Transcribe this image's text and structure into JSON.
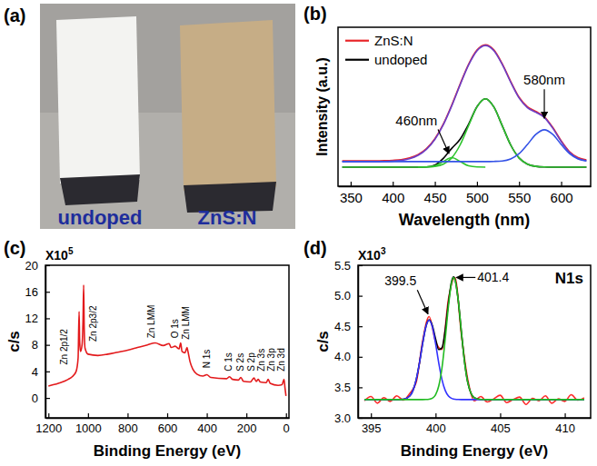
{
  "photo": {
    "panel_label": "(a)",
    "labels": [
      "undoped",
      "ZnS:N"
    ]
  },
  "chart_data": [
    {
      "type": "line",
      "panel_label": "(b)",
      "x_label": "Wavelength (nm)",
      "y_label": "Intensity (a.u.)",
      "xlim": [
        335,
        635
      ],
      "xticks": [
        350,
        400,
        450,
        500,
        550,
        600
      ],
      "ylim": [
        0,
        1
      ],
      "tick_labels": "x",
      "legend": "upper left",
      "x": [
        340,
        350,
        360,
        370,
        380,
        390,
        400,
        410,
        420,
        430,
        440,
        450,
        460,
        470,
        480,
        490,
        500,
        510,
        520,
        530,
        540,
        550,
        560,
        570,
        580,
        590,
        600,
        610,
        620,
        630
      ],
      "series": [
        {
          "name": "ZnS:N",
          "color": "#e8262a",
          "values": [
            0.16,
            0.16,
            0.16,
            0.16,
            0.16,
            0.161,
            0.163,
            0.167,
            0.178,
            0.199,
            0.237,
            0.299,
            0.391,
            0.51,
            0.643,
            0.767,
            0.857,
            0.89,
            0.858,
            0.771,
            0.66,
            0.56,
            0.499,
            0.47,
            0.437,
            0.37,
            0.286,
            0.217,
            0.18,
            0.165
          ]
        },
        {
          "color": "#6a3fc8",
          "values": [
            0.155,
            0.155,
            0.155,
            0.155,
            0.155,
            0.156,
            0.158,
            0.162,
            0.173,
            0.194,
            0.232,
            0.294,
            0.386,
            0.505,
            0.638,
            0.762,
            0.852,
            0.885,
            0.853,
            0.766,
            0.655,
            0.555,
            0.494,
            0.465,
            0.432,
            0.365,
            0.281,
            0.212,
            0.175,
            0.16
          ]
        },
        {
          "name": "undoped",
          "color": "#000000",
          "values": [
            0.12,
            0.12,
            0.12,
            0.12,
            0.12,
            0.12,
            0.12,
            0.12,
            0.12,
            0.12,
            0.121,
            0.133,
            0.175,
            0.238,
            0.296,
            0.389,
            0.5,
            0.55,
            0.499,
            0.381,
            0.26,
            0.178,
            0.139,
            0.125,
            0.121,
            0.12,
            0.12,
            0.12,
            0.12,
            0.12
          ]
        },
        {
          "color": "#2fc42f",
          "values": [
            0.12,
            0.12,
            0.12,
            0.12,
            0.12,
            0.12,
            0.12,
            0.12,
            0.12,
            0.12,
            0.121,
            0.125,
            0.139,
            0.178,
            0.26,
            0.381,
            0.499,
            0.55,
            0.499,
            0.381,
            0.26,
            0.178,
            0.139,
            0.125,
            0.121,
            0.12,
            0.12,
            0.12,
            0.12,
            0.12
          ]
        },
        {
          "color": "#2fc42f",
          "values": [
            null,
            null,
            null,
            null,
            null,
            null,
            null,
            null,
            null,
            0.12,
            0.121,
            0.128,
            0.156,
            0.18,
            0.156,
            0.128,
            0.121,
            0.12,
            null,
            null,
            null,
            null,
            null,
            null,
            null,
            null,
            null,
            null,
            null,
            null
          ]
        },
        {
          "color": "#3452e6",
          "values": [
            0.155,
            0.155,
            0.155,
            0.155,
            0.155,
            0.155,
            0.155,
            0.155,
            0.155,
            0.155,
            0.155,
            0.155,
            0.155,
            0.155,
            0.155,
            0.155,
            0.155,
            0.155,
            0.156,
            0.159,
            0.172,
            0.205,
            0.263,
            0.326,
            0.355,
            0.326,
            0.263,
            0.205,
            0.172,
            0.159
          ]
        }
      ],
      "annotations": [
        {
          "text": "460nm",
          "x": 468,
          "y": 0.19
        },
        {
          "text": "580nm",
          "x": 580,
          "y": 0.41
        }
      ]
    },
    {
      "type": "line",
      "panel_label": "(c)",
      "x_label": "Binding Energy (eV)",
      "y_label": "c/s",
      "y_multiplier": {
        "base": "X10",
        "exponent": "5"
      },
      "xlim": [
        1215,
        -15
      ],
      "xticks": [
        1200,
        1000,
        800,
        600,
        400,
        200,
        0
      ],
      "ylim": [
        -3,
        20
      ],
      "yticks": [
        0,
        4,
        8,
        12,
        16,
        20
      ],
      "x": [
        1200,
        1150,
        1100,
        1080,
        1060,
        1050,
        1045,
        1042,
        1038,
        1030,
        1025,
        1022,
        1019,
        1015,
        1000,
        950,
        900,
        850,
        800,
        750,
        700,
        660,
        620,
        590,
        580,
        560,
        540,
        532,
        525,
        510,
        500,
        495,
        485,
        470,
        450,
        420,
        400,
        380,
        300,
        285,
        270,
        240,
        228,
        215,
        180,
        162,
        150,
        140,
        130,
        100,
        90,
        80,
        40,
        20,
        10,
        5,
        0
      ],
      "series": [
        {
          "color": "#e31a1c",
          "values": [
            1.8,
            2.2,
            2.8,
            3.2,
            4.0,
            6.0,
            13.0,
            8.5,
            7.0,
            8.0,
            12.0,
            17.0,
            10.5,
            7.5,
            6.6,
            6.4,
            6.6,
            6.9,
            7.2,
            7.6,
            8.0,
            8.3,
            7.9,
            8.2,
            7.6,
            7.8,
            7.4,
            8.3,
            7.0,
            6.8,
            7.6,
            7.0,
            5.5,
            4.3,
            3.6,
            3.3,
            3.5,
            3.1,
            2.9,
            3.2,
            2.8,
            2.7,
            3.1,
            2.5,
            2.4,
            3.0,
            2.5,
            2.8,
            2.4,
            2.3,
            2.8,
            2.2,
            1.9,
            2.0,
            2.8,
            1.5,
            0.3
          ]
        }
      ],
      "peak_labels": [
        {
          "text": "Zn 2p1/2",
          "x": 1120,
          "y": 5
        },
        {
          "text": "Zn 2p3/2",
          "x": 975,
          "y": 8.5
        },
        {
          "text": "Zn LMM",
          "x": 680,
          "y": 9
        },
        {
          "text": "O 1s",
          "x": 560,
          "y": 9
        },
        {
          "text": "Zn LMM",
          "x": 505,
          "y": 8.8
        },
        {
          "text": "N 1s",
          "x": 400,
          "y": 4.5
        },
        {
          "text": "C 1s",
          "x": 290,
          "y": 4
        },
        {
          "text": "S 2s",
          "x": 230,
          "y": 4
        },
        {
          "text": "S 2p",
          "x": 175,
          "y": 4
        },
        {
          "text": "Zn 3s",
          "x": 125,
          "y": 4
        },
        {
          "text": "Zn 3p",
          "x": 75,
          "y": 4
        },
        {
          "text": "Zn 3d",
          "x": 25,
          "y": 4
        }
      ]
    },
    {
      "type": "line",
      "panel_label": "(d)",
      "title": "N1s",
      "x_label": "Binding Energy (eV)",
      "y_label": "c/s",
      "y_multiplier": {
        "base": "X10",
        "exponent": "3"
      },
      "xlim": [
        394,
        412
      ],
      "xticks": [
        395,
        400,
        405,
        410
      ],
      "ylim": [
        3,
        5.5
      ],
      "yticks": [
        {
          "value": 3,
          "label": "3.0"
        },
        3.5,
        {
          "value": 4,
          "label": "4.0"
        },
        4.5,
        {
          "value": 5,
          "label": "5.0"
        },
        5.5
      ],
      "x": [
        394.5,
        396,
        397,
        397.5,
        398,
        398.25,
        398.5,
        398.75,
        399,
        399.25,
        399.5,
        399.75,
        400,
        400.25,
        400.5,
        400.75,
        401,
        401.25,
        401.4,
        401.5,
        401.75,
        402,
        402.25,
        402.5,
        403,
        403.5,
        404,
        405,
        411.5
      ],
      "series": [
        {
          "color": "#ff2a2a",
          "x": [
            394.5,
            395,
            395.5,
            396,
            396.5,
            397,
            397.5,
            398,
            398.5,
            399,
            399.5,
            400,
            400.5,
            401,
            401.5,
            402,
            402.5,
            403,
            403.5,
            404,
            404.5,
            405,
            405.5,
            406,
            406.5,
            407,
            407.5,
            408,
            408.5,
            409,
            409.5,
            410,
            410.5,
            411,
            411.5
          ],
          "values": [
            3.28,
            3.35,
            3.24,
            3.33,
            3.27,
            3.36,
            3.29,
            3.4,
            3.58,
            4.26,
            4.66,
            4.25,
            4.12,
            4.95,
            5.3,
            4.36,
            3.62,
            3.28,
            3.35,
            3.26,
            3.31,
            3.37,
            3.25,
            3.3,
            3.34,
            3.22,
            3.32,
            3.28,
            3.36,
            3.24,
            3.31,
            3.27,
            3.38,
            3.29,
            3.33
          ]
        },
        {
          "color": "#000000",
          "values": [
            3.3,
            3.3,
            3.3,
            3.305,
            3.357,
            3.448,
            3.624,
            3.895,
            4.219,
            4.493,
            4.605,
            4.514,
            4.297,
            4.119,
            4.148,
            4.444,
            4.893,
            5.244,
            5.309,
            5.272,
            4.935,
            4.404,
            3.906,
            3.57,
            3.329,
            3.301,
            3.3,
            3.3,
            3.3
          ]
        },
        {
          "color": "#3333ff",
          "values": [
            3.3,
            3.3,
            3.3,
            3.305,
            3.357,
            3.448,
            3.624,
            3.895,
            4.219,
            4.492,
            4.6,
            4.492,
            4.219,
            3.895,
            3.624,
            3.448,
            3.357,
            3.318,
            3.309,
            3.305,
            3.301,
            3.3,
            3.3,
            3.3,
            3.3,
            3.3,
            3.3,
            3.3,
            3.3
          ]
        },
        {
          "color": "#22bb22",
          "values": [
            3.3,
            3.3,
            3.3,
            3.3,
            3.3,
            3.3,
            3.3,
            3.3,
            3.3,
            3.301,
            3.305,
            3.322,
            3.378,
            3.524,
            3.824,
            4.296,
            4.836,
            5.226,
            5.3,
            5.267,
            4.934,
            4.404,
            3.906,
            3.57,
            3.329,
            3.301,
            3.3,
            3.3,
            3.3
          ]
        }
      ],
      "annotations": [
        {
          "text": "399.5",
          "x": 399.5,
          "y": 4.66
        },
        {
          "text": "401.4",
          "x": 401.4,
          "y": 5.3
        }
      ]
    }
  ]
}
